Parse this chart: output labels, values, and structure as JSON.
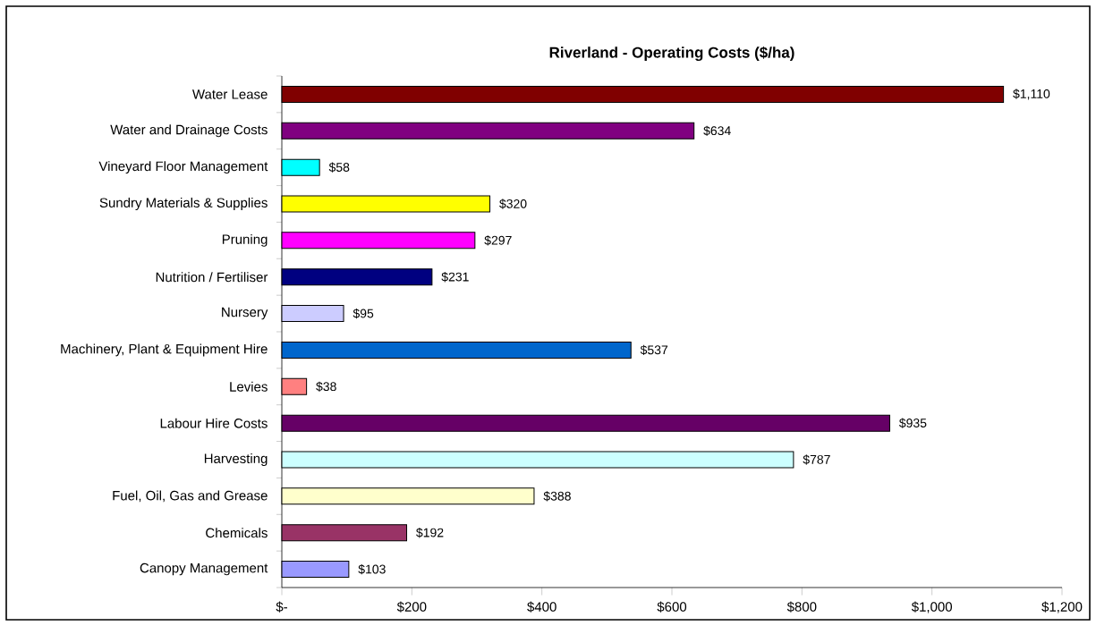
{
  "chart_data": {
    "type": "bar",
    "orientation": "horizontal",
    "title": "Riverland - Operating Costs ($/ha)",
    "categories": [
      "Water Lease",
      "Water and Drainage Costs",
      "Vineyard Floor Management",
      "Sundry Materials & Supplies",
      "Pruning",
      "Nutrition / Fertiliser",
      "Nursery",
      "Machinery, Plant & Equipment Hire",
      "Levies",
      "Labour Hire Costs",
      "Harvesting",
      "Fuel, Oil, Gas and Grease",
      "Chemicals",
      "Canopy Management"
    ],
    "values": [
      1110,
      634,
      58,
      320,
      297,
      231,
      95,
      537,
      38,
      935,
      787,
      388,
      192,
      103
    ],
    "value_labels": [
      "$1,110",
      "$634",
      "$58",
      "$320",
      "$297",
      "$231",
      "$95",
      "$537",
      "$38",
      "$935",
      "$787",
      "$388",
      "$192",
      "$103"
    ],
    "colors": [
      "#800000",
      "#800080",
      "#00ffff",
      "#ffff00",
      "#ff00ff",
      "#000080",
      "#ccccff",
      "#0066cc",
      "#ff8080",
      "#660066",
      "#ccffff",
      "#ffffcc",
      "#993366",
      "#9999ff"
    ],
    "xlim": [
      0,
      1200
    ],
    "xticks": [
      {
        "value": 0,
        "label": "$-"
      },
      {
        "value": 200,
        "label": "$200"
      },
      {
        "value": 400,
        "label": "$400"
      },
      {
        "value": 600,
        "label": "$600"
      },
      {
        "value": 800,
        "label": "$800"
      },
      {
        "value": 1000,
        "label": "$1,000"
      },
      {
        "value": 1200,
        "label": "$1,200"
      }
    ]
  }
}
